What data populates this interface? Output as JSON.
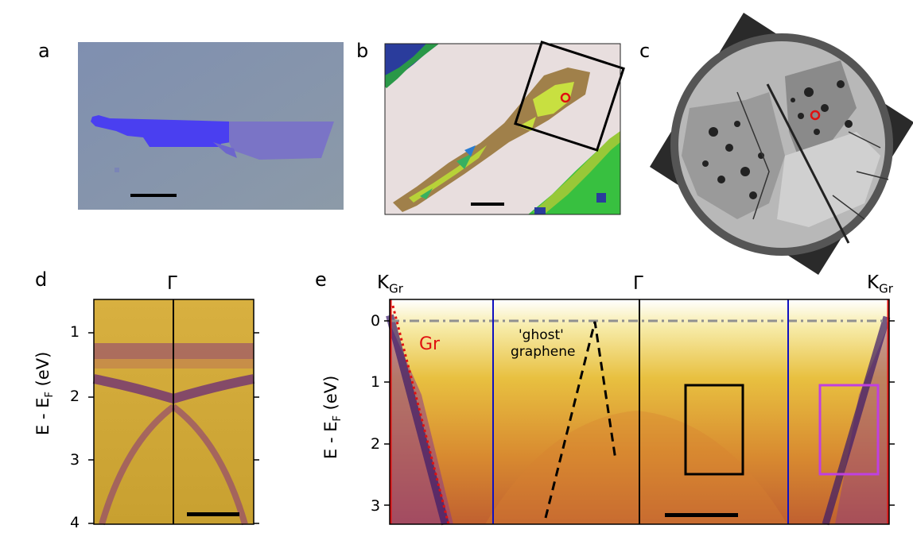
{
  "panels": {
    "a": {
      "label": "a"
    },
    "b": {
      "label": "b"
    },
    "c": {
      "label": "c"
    },
    "d": {
      "label": "d",
      "top_label": "Γ",
      "ylabel_main": "E - E",
      "ylabel_sub": "F",
      "ylabel_unit": " (eV)",
      "yticks": [
        "1",
        "2",
        "3",
        "4"
      ]
    },
    "e": {
      "label": "e",
      "k_left": "K",
      "k_left_sub": "Gr",
      "gamma": "Γ",
      "k_right": "K",
      "k_right_sub": "Gr",
      "ylabel_main": "E - E",
      "ylabel_sub": "F",
      "ylabel_unit": " (eV)",
      "yticks": [
        "0",
        "1",
        "2",
        "3"
      ],
      "gr_label": "Gr",
      "ghost_line1": "'ghost'",
      "ghost_line2": "graphene"
    }
  },
  "colors": {
    "red_marker": "#e01010",
    "blue_line": "#1010c0",
    "magenta_box": "#c040e0",
    "ghost_dash": "#000000",
    "fermi_dash": "#909090"
  }
}
